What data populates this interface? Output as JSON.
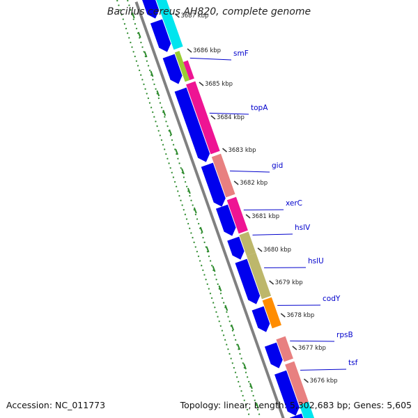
{
  "title": "Bacillus cereus AH820, complete genome",
  "footer": {
    "accession": "Accession: NC_011773",
    "topology": "Topology: linear; Length: 5,302,683 bp; Genes: 5,605"
  },
  "colors": {
    "backbone": "#808080",
    "forward_cds": "#0000ee",
    "label": "#0000cc",
    "dotted_track": "#2e8b2e",
    "cyan": "#00e5ee",
    "magenta": "#ee1493",
    "yellowgreen": "#9acd32",
    "salmon": "#e88080",
    "khaki": "#bdb76b",
    "orange": "#ff8c00"
  },
  "kbp_ticks": [
    "3687 kbp",
    "3686 kbp",
    "3685 kbp",
    "3684 kbp",
    "3683 kbp",
    "3682 kbp",
    "3681 kbp",
    "3680 kbp",
    "3679 kbp",
    "3678 kbp",
    "3677 kbp",
    "3676 kbp"
  ],
  "gene_labels": [
    "smF",
    "topA",
    "gid",
    "xerC",
    "hslV",
    "hslU",
    "codY",
    "rpsB",
    "tsf"
  ],
  "blue_features": 12,
  "colored_features": [
    {
      "color": "cyan"
    },
    {
      "color": "yellowgreen"
    },
    {
      "color": "magenta"
    },
    {
      "color": "magenta"
    },
    {
      "color": "salmon"
    },
    {
      "color": "magenta"
    },
    {
      "color": "khaki"
    },
    {
      "color": "khaki"
    },
    {
      "color": "orange"
    },
    {
      "color": "salmon"
    },
    {
      "color": "salmon"
    },
    {
      "color": "cyan"
    }
  ]
}
